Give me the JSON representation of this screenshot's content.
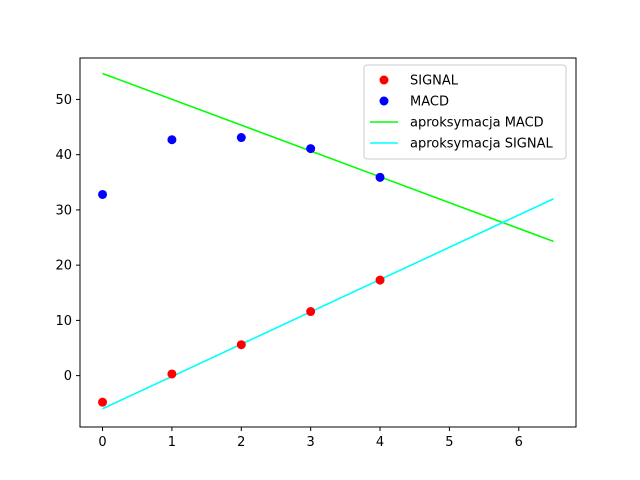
{
  "chart_data": {
    "type": "scatter",
    "title": "",
    "xlabel": "",
    "ylabel": "",
    "xlim": [
      -0.325,
      6.825
    ],
    "ylim": [
      -9.3,
      57.5
    ],
    "xticks": [
      0,
      1,
      2,
      3,
      4,
      5,
      6
    ],
    "yticks": [
      0,
      10,
      20,
      30,
      40,
      50
    ],
    "grid": false,
    "legend_position": "top-right",
    "series": [
      {
        "name": "SIGNAL",
        "kind": "scatter",
        "color": "#ff0000",
        "x": [
          0,
          1,
          2,
          3,
          4
        ],
        "y": [
          -4.8,
          0.3,
          5.6,
          11.6,
          17.3
        ]
      },
      {
        "name": "MACD",
        "kind": "scatter",
        "color": "#0000ff",
        "x": [
          0,
          1,
          2,
          3,
          4
        ],
        "y": [
          32.8,
          42.7,
          43.1,
          41.1,
          35.9
        ]
      },
      {
        "name": "aproksymacja MACD",
        "kind": "line",
        "color": "#00ff00",
        "x": [
          0,
          6.5
        ],
        "y": [
          54.7,
          24.3
        ]
      },
      {
        "name": "aproksymacja SIGNAL",
        "kind": "line",
        "color": "#00ffff",
        "x": [
          0,
          6.5
        ],
        "y": [
          -6.0,
          32.0
        ]
      }
    ]
  }
}
